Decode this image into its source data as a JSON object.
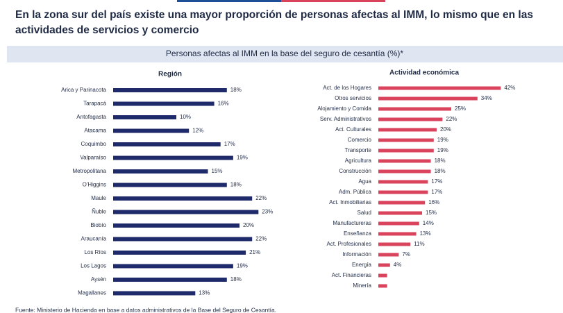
{
  "title": "En la zona sur del país existe una mayor proporción de personas afectas al IMM, lo mismo que en las actividades de servicios y comercio",
  "subtitle": "Personas afectas al IMM en la base del seguro de cesantía (%)*",
  "source": "Fuente: Ministerio de Hacienda en base a datos administrativos de la Base del Seguro de Cesantía.",
  "chart_data": [
    {
      "type": "hbar",
      "title": "Región",
      "color": "#1f2a6b",
      "categories": [
        "Arica y Parinacota",
        "Tarapacá",
        "Antofagasta",
        "Atacama",
        "Coquimbo",
        "Valparaíso",
        "Metropolitana",
        "O'Higgins",
        "Maule",
        "Ñuble",
        "Biobío",
        "Araucanía",
        "Los Ríos",
        "Los Lagos",
        "Aysén",
        "Magallanes"
      ],
      "values": [
        18,
        16,
        10,
        12,
        17,
        19,
        15,
        18,
        22,
        23,
        20,
        22,
        21,
        19,
        18,
        13
      ],
      "value_labels": [
        "18%",
        "16%",
        "10%",
        "12%",
        "17%",
        "19%",
        "15%",
        "18%",
        "22%",
        "23%",
        "20%",
        "22%",
        "21%",
        "19%",
        "18%",
        "13%"
      ],
      "xlim": [
        0,
        25
      ]
    },
    {
      "type": "hbar",
      "title": "Actividad económica",
      "color": "#d9445c",
      "categories": [
        "Act. de los Hogares",
        "Otros servicios",
        "Alojamiento y Comida",
        "Serv. Administrativos",
        "Act. Culturales",
        "Comercio",
        "Transporte",
        "Agricultura",
        "Construcción",
        "Agua",
        "Adm. Pública",
        "Act. Inmobiliarias",
        "Salud",
        "Manufactureras",
        "Enseñanza",
        "Act. Profesionales",
        "Información",
        "Energía",
        "Act. Financieras",
        "Minería"
      ],
      "values": [
        42,
        34,
        25,
        22,
        20,
        19,
        19,
        18,
        18,
        17,
        17,
        16,
        15,
        14,
        13,
        11,
        7,
        4,
        3,
        3
      ],
      "value_labels": [
        "42%",
        "34%",
        "25%",
        "22%",
        "20%",
        "19%",
        "19%",
        "18%",
        "18%",
        "17%",
        "17%",
        "16%",
        "15%",
        "14%",
        "13%",
        "11%",
        "7%",
        "4%",
        null,
        null
      ],
      "xlim": [
        0,
        45
      ]
    }
  ]
}
